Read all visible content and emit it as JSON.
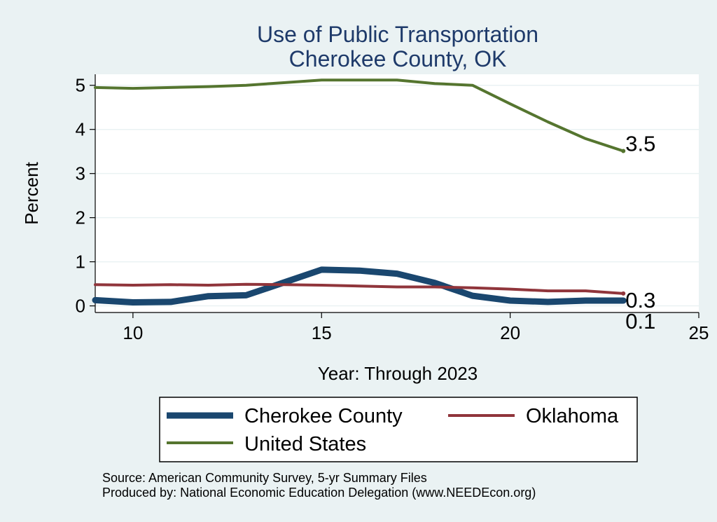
{
  "chart_data": {
    "type": "line",
    "title": "Use of Public Transportation",
    "subtitle": "Cherokee County, OK",
    "xlabel": "Year: Through 2023",
    "ylabel": "Percent",
    "xlim": [
      9,
      25
    ],
    "ylim": [
      -0.15,
      5.25
    ],
    "xticks": [
      10,
      15,
      20,
      25
    ],
    "yticks": [
      0,
      1,
      2,
      3,
      4,
      5
    ],
    "grid": true,
    "legend_position": "bottom",
    "series": [
      {
        "name": "Cherokee County",
        "color": "#1a476f",
        "x": [
          9,
          10,
          11,
          12,
          13,
          14,
          15,
          16,
          17,
          18,
          19,
          20,
          21,
          22,
          23
        ],
        "y": [
          0.13,
          0.08,
          0.09,
          0.22,
          0.24,
          0.53,
          0.82,
          0.8,
          0.73,
          0.52,
          0.23,
          0.12,
          0.09,
          0.12,
          0.12
        ],
        "end_label": "0.1"
      },
      {
        "name": "Oklahoma",
        "color": "#90353b",
        "x": [
          9,
          10,
          11,
          12,
          13,
          14,
          15,
          16,
          17,
          18,
          19,
          20,
          21,
          22,
          23
        ],
        "y": [
          0.48,
          0.47,
          0.48,
          0.47,
          0.49,
          0.48,
          0.47,
          0.45,
          0.43,
          0.43,
          0.41,
          0.38,
          0.34,
          0.34,
          0.28
        ],
        "end_label": "0.3"
      },
      {
        "name": "United States",
        "color": "#55752f",
        "x": [
          9,
          10,
          11,
          12,
          13,
          14,
          15,
          16,
          17,
          18,
          19,
          20,
          21,
          22,
          23
        ],
        "y": [
          4.95,
          4.93,
          4.95,
          4.97,
          5.0,
          5.06,
          5.12,
          5.12,
          5.12,
          5.04,
          5.0,
          4.58,
          4.17,
          3.79,
          3.51
        ],
        "end_label": "3.5"
      }
    ],
    "legend": {
      "entries": [
        "Cherokee County",
        "Oklahoma",
        "United States"
      ]
    }
  },
  "footer": {
    "source": "Source: American Community Survey, 5-yr Summary Files",
    "produced": "Produced by: National Economic Education Delegation (www.NEEDEcon.org)"
  }
}
